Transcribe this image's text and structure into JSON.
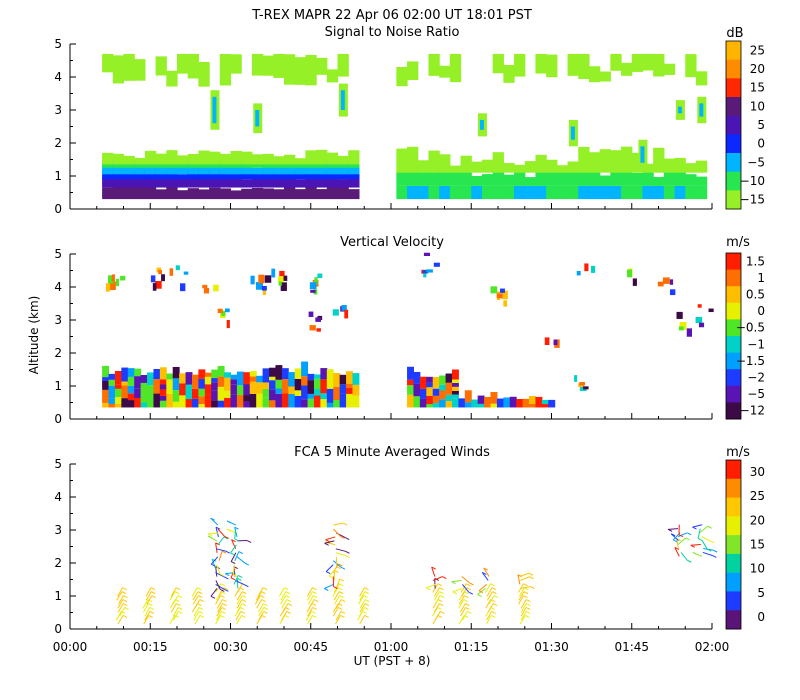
{
  "page_title": "T-REX  MAPR 22 Apr 06  02:00 UT  18:01  PST",
  "y_axis_label": "Altitude (km)",
  "x_axis_label": "UT  (PST + 8)",
  "x_ticks": [
    "00:00",
    "00:15",
    "00:30",
    "00:45",
    "01:00",
    "01:15",
    "01:30",
    "01:45",
    "02:00"
  ],
  "y_ticks": [
    "0",
    "1",
    "2",
    "3",
    "4",
    "5"
  ],
  "chart_data": [
    {
      "type": "heatmap",
      "title": "Signal to Noise Ratio",
      "xlabel": "UT  (PST + 8)",
      "ylabel": "Altitude (km)",
      "xlim_minutes": [
        0,
        120
      ],
      "ylim_km": [
        0,
        5
      ],
      "data_gap_minutes": [
        54,
        61
      ],
      "colorbar": {
        "unit": "dB",
        "labels": [
          "25",
          "20",
          "15",
          "10",
          "5",
          "0",
          "−5",
          "−10",
          "−15"
        ],
        "colors": [
          "#ffb400",
          "#ff8c00",
          "#ff2800",
          "#5a1a78",
          "#4b14b4",
          "#0a28ff",
          "#00b4ff",
          "#28e650",
          "#96f028"
        ]
      }
    },
    {
      "type": "heatmap",
      "title": "Vertical Velocity",
      "xlabel": "UT  (PST + 8)",
      "ylabel": "Altitude (km)",
      "xlim_minutes": [
        0,
        120
      ],
      "ylim_km": [
        0,
        5
      ],
      "data_gap_minutes": [
        54,
        61
      ],
      "colorbar": {
        "unit": "m/s",
        "labels": [
          "1.5",
          "1",
          "0.5",
          "0",
          "−0.5",
          "−1",
          "−1.5",
          "−2",
          "−5",
          "−12"
        ],
        "colors": [
          "#ff1e00",
          "#ff6e00",
          "#ffbe00",
          "#e6f000",
          "#50e628",
          "#00d2c8",
          "#00a0ff",
          "#1e3cff",
          "#5a14b4",
          "#3c0a46"
        ]
      }
    },
    {
      "type": "scatter",
      "title": "FCA 5 Minute Averaged Winds",
      "xlabel": "UT  (PST + 8)",
      "ylabel": "Altitude (km)",
      "xlim_minutes": [
        0,
        120
      ],
      "ylim_km": [
        0,
        5
      ],
      "columns_minutes": [
        9,
        14,
        19,
        23,
        27.5,
        31,
        35,
        39.5,
        44.5,
        49.5,
        54,
        68,
        73,
        78,
        84,
        114,
        118
      ],
      "colorbar": {
        "unit": "m/s",
        "labels": [
          "30",
          "25",
          "20",
          "15",
          "10",
          "5",
          "0"
        ],
        "colors": [
          "#ff1e00",
          "#ff8c00",
          "#ffc800",
          "#e6f000",
          "#82e628",
          "#00d2a0",
          "#00a0ff",
          "#1e3cff",
          "#5a1478"
        ]
      }
    }
  ]
}
